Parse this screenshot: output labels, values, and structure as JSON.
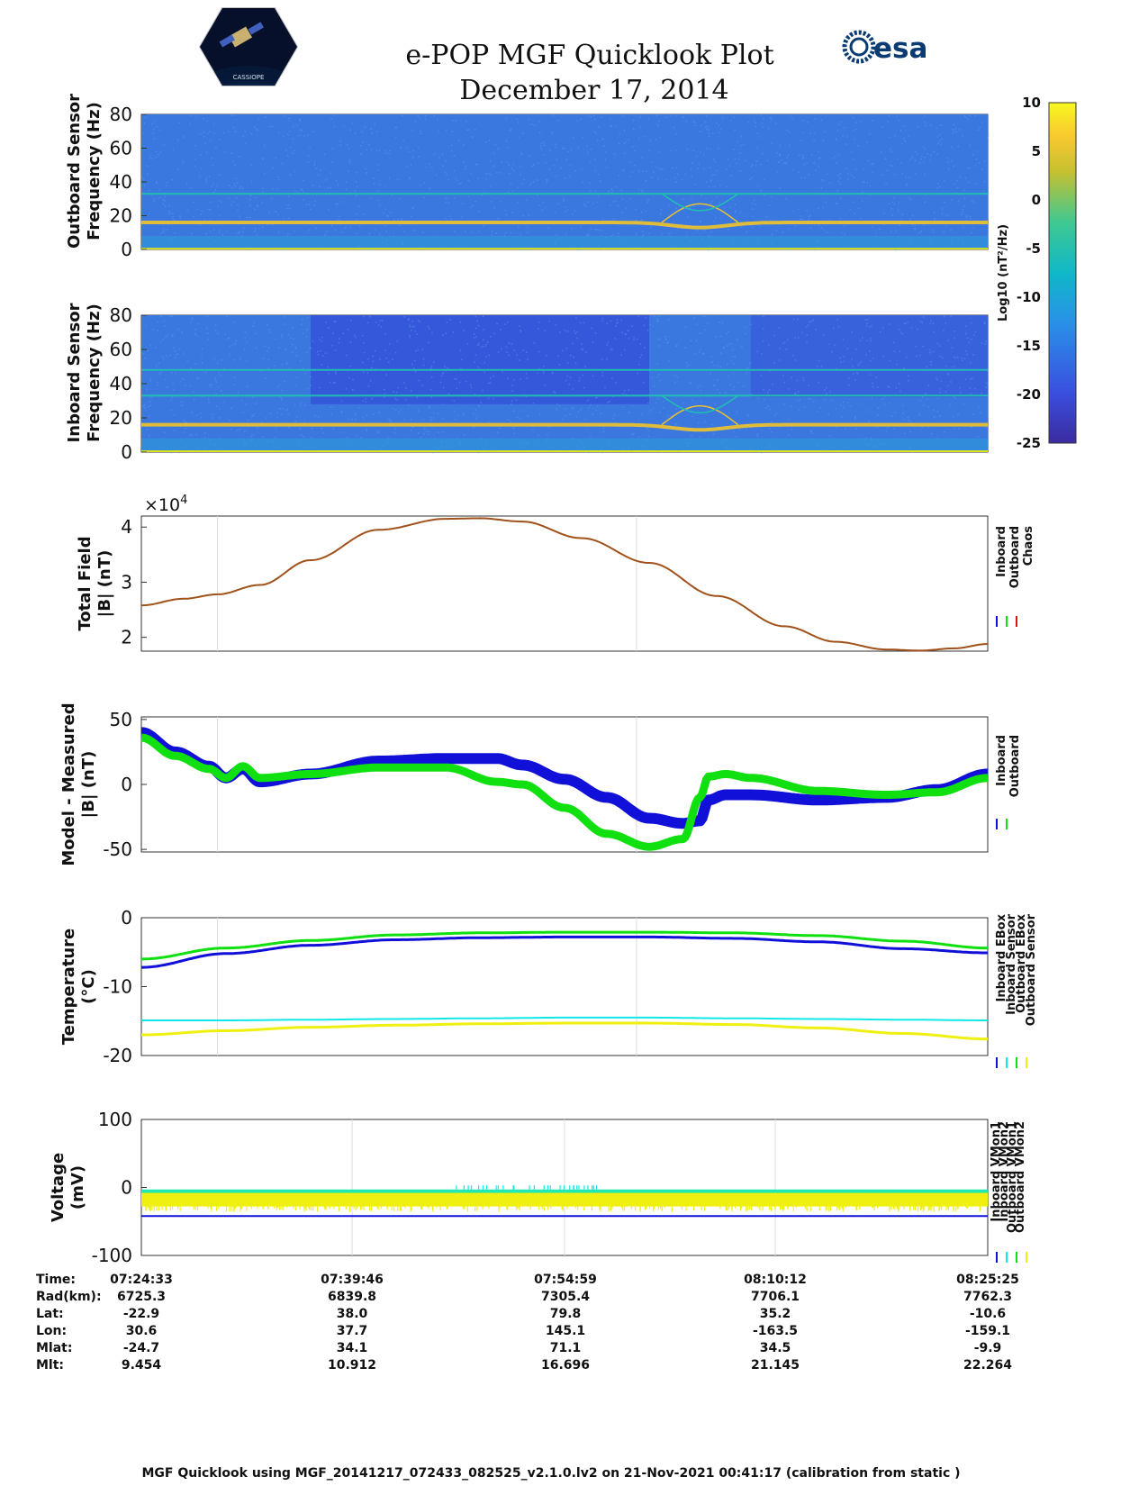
{
  "title": {
    "line1": "e-POP MGF Quicklook Plot",
    "line2": "December 17, 2014"
  },
  "logos": {
    "left_caption": "CASSIOPE",
    "right_text": "esa"
  },
  "colors": {
    "inboard": "#1010d8",
    "outboard": "#10e010",
    "chaos": "#e01010",
    "cyan": "#10e8e8",
    "yellow": "#f0f010",
    "trace_total": "#a0521a",
    "spec_bg": "#3a78e0",
    "spec_bg_dark": "#3450d8",
    "spec_line": "#e8c030",
    "spec_line2": "#20c0b0"
  },
  "colorbar": {
    "label": "Log10 (nT²/Hz)",
    "ticks": [
      "10",
      "5",
      "0",
      "-5",
      "-10",
      "-15",
      "-20",
      "-25"
    ],
    "range": [
      -25,
      10
    ]
  },
  "chart_data": [
    {
      "type": "heatmap",
      "name": "outboard-spectrogram",
      "ylabel": [
        "Outboard Sensor",
        "Frequency (Hz)"
      ],
      "yticks": [
        "80",
        "60",
        "40",
        "20",
        "0"
      ],
      "ylim": [
        0,
        80
      ],
      "harmonics_hz": [
        16,
        33
      ]
    },
    {
      "type": "heatmap",
      "name": "inboard-spectrogram",
      "ylabel": [
        "Inboard Sensor",
        "Frequency (Hz)"
      ],
      "yticks": [
        "80",
        "60",
        "40",
        "20",
        "0"
      ],
      "ylim": [
        0,
        80
      ],
      "harmonics_hz": [
        16,
        33,
        48
      ]
    },
    {
      "type": "line",
      "name": "total-field",
      "ylabel": [
        "Total Field",
        "|B| (nT)"
      ],
      "exponent": "×10",
      "exponent_power": "4",
      "yticks": [
        "4",
        "3",
        "2"
      ],
      "ylim": [
        1.75,
        4.2
      ],
      "legend": [
        "Inboard",
        "Outboard",
        "Chaos"
      ],
      "x": [
        0,
        0.05,
        0.09,
        0.14,
        0.2,
        0.28,
        0.36,
        0.4,
        0.45,
        0.52,
        0.6,
        0.68,
        0.76,
        0.82,
        0.88,
        0.92,
        0.96,
        1.0
      ],
      "series": [
        {
          "name": "Outboard",
          "values": [
            2.58,
            2.7,
            2.78,
            2.95,
            3.4,
            3.95,
            4.15,
            4.16,
            4.1,
            3.8,
            3.35,
            2.75,
            2.2,
            1.92,
            1.78,
            1.76,
            1.8,
            1.88
          ]
        }
      ]
    },
    {
      "type": "line",
      "name": "model-minus-measured",
      "ylabel": [
        "Model - Measured",
        "|B| (nT)"
      ],
      "yticks": [
        "50",
        "0",
        "-50"
      ],
      "ylim": [
        -52,
        52
      ],
      "legend": [
        "Inboard",
        "Outboard"
      ],
      "x": [
        0,
        0.04,
        0.08,
        0.1,
        0.12,
        0.14,
        0.2,
        0.28,
        0.36,
        0.42,
        0.45,
        0.5,
        0.55,
        0.6,
        0.64,
        0.66,
        0.67,
        0.69,
        0.72,
        0.8,
        0.88,
        0.94,
        1.0
      ],
      "series": [
        {
          "name": "Inboard",
          "values": [
            40,
            25,
            14,
            5,
            12,
            2,
            8,
            18,
            20,
            20,
            15,
            4,
            -10,
            -26,
            -30,
            -28,
            -12,
            -8,
            -8,
            -12,
            -10,
            -4,
            8
          ]
        },
        {
          "name": "Outboard",
          "values": [
            36,
            22,
            12,
            5,
            14,
            5,
            8,
            13,
            13,
            2,
            0,
            -18,
            -38,
            -48,
            -42,
            -10,
            6,
            8,
            5,
            -5,
            -8,
            -6,
            5
          ]
        }
      ]
    },
    {
      "type": "line",
      "name": "temperature",
      "ylabel": [
        "Temperature",
        "(°C)"
      ],
      "yticks": [
        "0",
        "-10",
        "-20"
      ],
      "ylim": [
        -20,
        0
      ],
      "legend": [
        "Inboard EBox",
        "Inboard Sensor",
        "Outboard EBox",
        "Outboard Sensor"
      ],
      "x": [
        0,
        0.1,
        0.2,
        0.3,
        0.4,
        0.5,
        0.6,
        0.7,
        0.8,
        0.9,
        1.0
      ],
      "series": [
        {
          "name": "Inboard EBox",
          "values": [
            -7.2,
            -5.2,
            -4.0,
            -3.2,
            -2.9,
            -2.8,
            -2.8,
            -3.0,
            -3.5,
            -4.5,
            -5.1
          ]
        },
        {
          "name": "Outboard EBox",
          "values": [
            -6.0,
            -4.4,
            -3.3,
            -2.5,
            -2.2,
            -2.1,
            -2.1,
            -2.2,
            -2.6,
            -3.4,
            -4.4
          ]
        },
        {
          "name": "Inboard Sensor",
          "values": [
            -14.9,
            -14.9,
            -14.8,
            -14.7,
            -14.6,
            -14.5,
            -14.5,
            -14.6,
            -14.7,
            -14.8,
            -14.9
          ]
        },
        {
          "name": "Outboard Sensor",
          "values": [
            -17.0,
            -16.4,
            -15.9,
            -15.6,
            -15.4,
            -15.3,
            -15.3,
            -15.5,
            -16.0,
            -16.8,
            -17.6
          ]
        }
      ]
    },
    {
      "type": "line",
      "name": "voltage",
      "ylabel": [
        "Voltage",
        "(mV)"
      ],
      "yticks": [
        "100",
        "0",
        "-100"
      ],
      "ylim": [
        -100,
        100
      ],
      "legend": [
        "Inboard VMon1",
        "Inboard VMon2",
        "Outboard VMon1",
        "Outboard VMon2"
      ],
      "series": [
        {
          "name": "Inboard VMon1",
          "values": [
            -42
          ]
        },
        {
          "name": "Inboard VMon2",
          "values": [
            -5
          ]
        },
        {
          "name": "Outboard VMon1",
          "values": [
            -8
          ]
        },
        {
          "name": "Outboard VMon2",
          "values": [
            -18
          ]
        }
      ]
    }
  ],
  "xaxis": {
    "row_labels": [
      "Time:",
      "Rad(km):",
      "Lat:",
      "Lon:",
      "Mlat:",
      "Mlt:"
    ],
    "columns": [
      [
        "07:24:33",
        "6725.3",
        "-22.9",
        "30.6",
        "-24.7",
        "9.454"
      ],
      [
        "07:39:46",
        "6839.8",
        "38.0",
        "37.7",
        "34.1",
        "10.912"
      ],
      [
        "07:54:59",
        "7305.4",
        "79.8",
        "145.1",
        "71.1",
        "16.696"
      ],
      [
        "08:10:12",
        "7706.1",
        "35.2",
        "-163.5",
        "34.5",
        "21.145"
      ],
      [
        "08:25:25",
        "7762.3",
        "-10.6",
        "-159.1",
        "-9.9",
        "22.264"
      ]
    ]
  },
  "footer": "MGF Quicklook using MGF_20141217_072433_082525_v2.1.0.lv2 on 21-Nov-2021 00:41:17 (calibration from static )"
}
